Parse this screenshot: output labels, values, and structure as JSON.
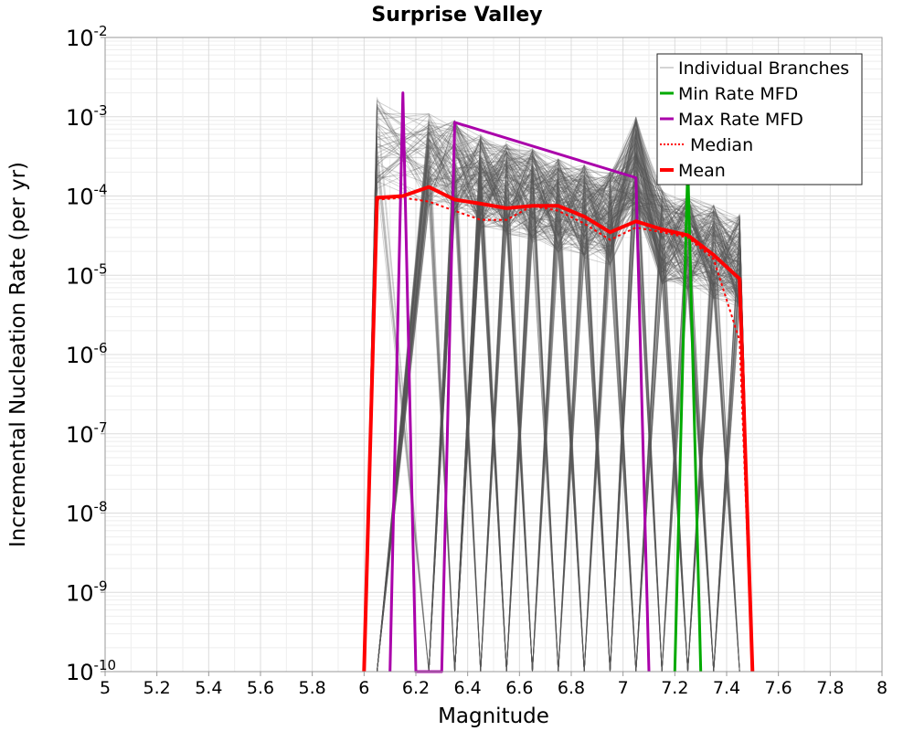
{
  "chart_data": {
    "type": "line",
    "title": "Surprise Valley",
    "xlabel": "Magnitude",
    "ylabel": "Incremental Nucleation Rate (per yr)",
    "xlim": [
      5,
      8
    ],
    "ylim": [
      1e-10,
      0.01
    ],
    "yscale": "log",
    "grid": true,
    "legend_position": "top-right",
    "x_ticks": [
      "5",
      "5.2",
      "5.4",
      "5.6",
      "5.8",
      "6",
      "6.2",
      "6.4",
      "6.6",
      "6.8",
      "7",
      "7.2",
      "7.4",
      "7.6",
      "7.8",
      "8"
    ],
    "y_ticks": [
      {
        "base": "10",
        "exp": "-2"
      },
      {
        "base": "10",
        "exp": "-3"
      },
      {
        "base": "10",
        "exp": "-4"
      },
      {
        "base": "10",
        "exp": "-5"
      },
      {
        "base": "10",
        "exp": "-6"
      },
      {
        "base": "10",
        "exp": "-7"
      },
      {
        "base": "10",
        "exp": "-8"
      },
      {
        "base": "10",
        "exp": "-9"
      },
      {
        "base": "10",
        "exp": "-10"
      }
    ],
    "series": [
      {
        "name": "Individual Branches",
        "color": "#555555",
        "style": "thin",
        "description_note": "many overlapping logic-tree branch MFDs",
        "x": [
          6.05,
          6.25,
          6.35,
          6.45,
          6.55,
          6.65,
          6.75,
          6.85,
          6.95,
          7.05,
          7.15,
          7.25,
          7.35,
          7.45
        ],
        "envelope_max": [
          0.0018,
          0.0011,
          0.0009,
          0.0006,
          0.0005,
          0.0004,
          0.0003,
          0.00025,
          0.0002,
          0.001,
          0.00012,
          0.0001,
          8e-05,
          6e-05
        ],
        "envelope_min": [
          1e-10,
          1e-10,
          1e-10,
          1e-10,
          1e-10,
          1e-10,
          1e-10,
          1e-10,
          1e-10,
          1e-10,
          1e-10,
          1e-10,
          1e-10,
          1e-10
        ]
      },
      {
        "name": "Min Rate MFD",
        "color": "#00aa00",
        "x": [
          7.2,
          7.25,
          7.3
        ],
        "y": [
          1e-10,
          0.00025,
          1e-10
        ]
      },
      {
        "name": "Max Rate MFD",
        "color": "#aa00aa",
        "x": [
          6.1,
          6.15,
          6.2,
          6.3,
          6.35,
          7.05,
          7.1
        ],
        "y": [
          1e-10,
          0.002,
          1e-10,
          1e-10,
          0.00085,
          0.00017,
          1e-10
        ]
      },
      {
        "name": "Median",
        "color": "#ff0000",
        "style": "dotted",
        "x": [
          6.0,
          6.05,
          6.15,
          6.25,
          6.35,
          6.45,
          6.55,
          6.65,
          6.75,
          6.85,
          6.95,
          7.05,
          7.15,
          7.25,
          7.35,
          7.45,
          7.5
        ],
        "y": [
          1e-10,
          9e-05,
          9.5e-05,
          8.5e-05,
          6.5e-05,
          5e-05,
          5e-05,
          7.5e-05,
          6.5e-05,
          4.5e-05,
          2.8e-05,
          4e-05,
          3.5e-05,
          3e-05,
          1.6e-05,
          1.5e-06,
          1e-10
        ]
      },
      {
        "name": "Mean",
        "color": "#ff0000",
        "style": "thick",
        "x": [
          6.0,
          6.05,
          6.15,
          6.25,
          6.35,
          6.45,
          6.55,
          6.65,
          6.75,
          6.85,
          6.95,
          7.05,
          7.15,
          7.25,
          7.35,
          7.45,
          7.5
        ],
        "y": [
          1e-10,
          9.5e-05,
          0.0001,
          0.00013,
          9e-05,
          8e-05,
          7e-05,
          7.5e-05,
          7.5e-05,
          5.5e-05,
          3.5e-05,
          4.8e-05,
          3.8e-05,
          3.2e-05,
          1.8e-05,
          9e-06,
          1e-10
        ]
      }
    ]
  }
}
